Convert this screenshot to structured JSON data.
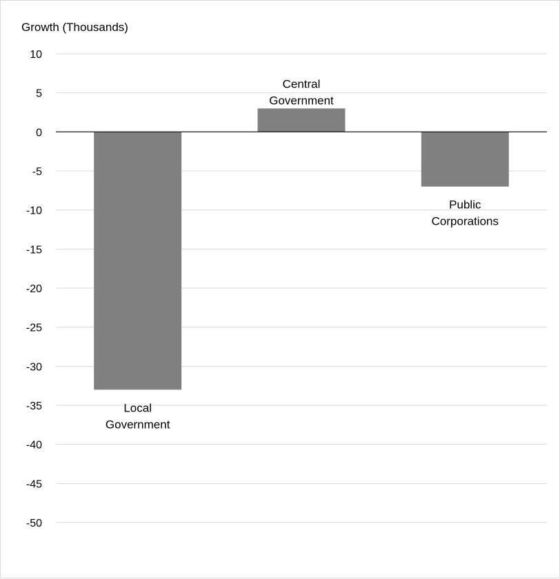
{
  "chart_data": {
    "type": "bar",
    "ylabel": "Growth (Thousands)",
    "categories": [
      [
        "Local",
        "Government"
      ],
      [
        "Central",
        "Government"
      ],
      [
        "Public",
        "Corporations"
      ]
    ],
    "values": [
      -33,
      3,
      -7
    ],
    "ylim": [
      -50,
      10
    ],
    "yticks": [
      10,
      5,
      0,
      -5,
      -10,
      -15,
      -20,
      -25,
      -30,
      -35,
      -40,
      -45,
      -50
    ],
    "grid": true,
    "bar_color": "#808080",
    "grid_color": "#d9d9d9",
    "zero_line_color": "#000000"
  }
}
